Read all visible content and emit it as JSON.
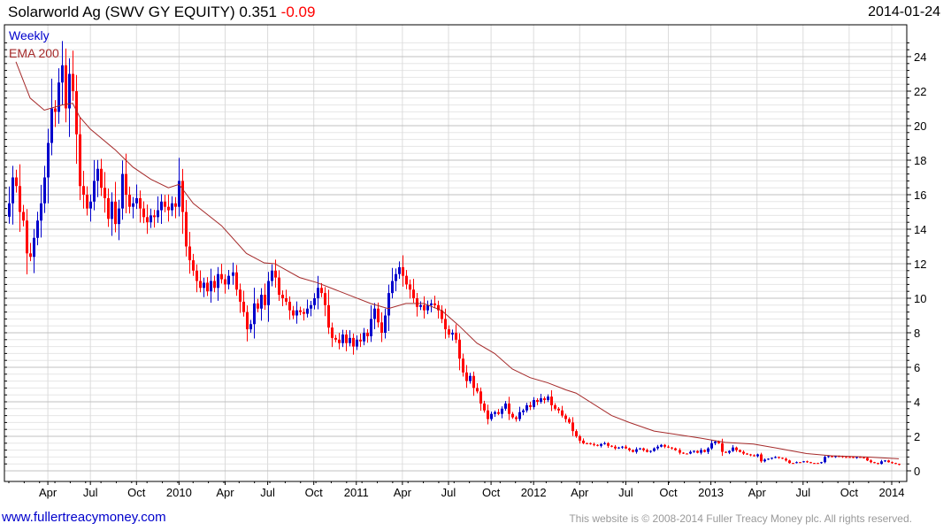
{
  "header": {
    "title": "Solarworld Ag (SWV GY EQUITY) 0.351",
    "change": "-0.09",
    "date": "2014-01-24"
  },
  "legend": {
    "weekly": "Weekly",
    "ema": "EMA 200"
  },
  "footer": {
    "site": "www.fullertreacymoney.com",
    "copyright": "This website is © 2008-2014 Fuller Treacy Money plc. All rights reserved."
  },
  "colors": {
    "up": "#0000cc",
    "down": "#ff0000",
    "ema": "#a52a2a",
    "grid_major": "#c0c0c0",
    "grid_minor": "#e6e6e6"
  },
  "chart_data": {
    "type": "candlestick",
    "title": "Solarworld Ag (SWV GY EQUITY)",
    "frequency": "Weekly",
    "ylim": [
      0,
      25
    ],
    "yticks": [
      0,
      2,
      4,
      6,
      8,
      10,
      12,
      14,
      16,
      18,
      20,
      22,
      24
    ],
    "xticks": [
      {
        "label": "Apr",
        "week": 11
      },
      {
        "label": "Jul",
        "week": 23
      },
      {
        "label": "Oct",
        "week": 36
      },
      {
        "label": "2010",
        "week": 48
      },
      {
        "label": "Apr",
        "week": 61
      },
      {
        "label": "Jul",
        "week": 73
      },
      {
        "label": "Oct",
        "week": 86
      },
      {
        "label": "2011",
        "week": 98
      },
      {
        "label": "Apr",
        "week": 111
      },
      {
        "label": "Jul",
        "week": 124
      },
      {
        "label": "Oct",
        "week": 136
      },
      {
        "label": "2012",
        "week": 148
      },
      {
        "label": "Apr",
        "week": 161
      },
      {
        "label": "Jul",
        "week": 174
      },
      {
        "label": "Oct",
        "week": 186
      },
      {
        "label": "2013",
        "week": 198
      },
      {
        "label": "Apr",
        "week": 211
      },
      {
        "label": "Jul",
        "week": 224
      },
      {
        "label": "Oct",
        "week": 237
      },
      {
        "label": "2014",
        "week": 249
      }
    ],
    "closes": [
      15.5,
      17,
      16.5,
      15,
      14.5,
      12.6,
      12.4,
      13.5,
      14.5,
      15.5,
      17,
      19,
      21,
      20.8,
      22.5,
      23.5,
      21,
      23,
      22,
      19.5,
      16.5,
      16,
      15.2,
      15.6,
      16.8,
      17.5,
      16.4,
      15.8,
      14.6,
      15.6,
      14.3,
      15.2,
      17.2,
      16,
      15.3,
      15.5,
      15.8,
      15.2,
      14.7,
      14.4,
      14.8,
      14.7,
      15.1,
      15.6,
      15.3,
      15.1,
      15.5,
      15.3,
      16.8,
      15.0,
      13.0,
      12.2,
      11.6,
      11.0,
      10.6,
      10.9,
      10.4,
      11.0,
      10.6,
      11.4,
      11.1,
      10.8,
      11.3,
      11.5,
      10.5,
      9.8,
      9.2,
      8.2,
      8.5,
      9.7,
      9.4,
      10.2,
      9.6,
      11.0,
      11.6,
      11.2,
      10.2,
      10.0,
      9.8,
      9.3,
      9.0,
      9.3,
      9.2,
      9.1,
      9.4,
      9.6,
      10.0,
      10.6,
      10.3,
      9.6,
      8.3,
      7.7,
      7.6,
      7.4,
      7.9,
      7.4,
      7.7,
      7.2,
      7.6,
      7.5,
      8.0,
      7.8,
      8.8,
      9.4,
      8.6,
      8.0,
      9.0,
      10.3,
      11.0,
      11.4,
      11.8,
      11.3,
      10.8,
      10.5,
      10.0,
      9.5,
      9.6,
      9.3,
      9.6,
      9.7,
      9.6,
      9.3,
      8.8,
      8.2,
      7.9,
      8.0,
      7.6,
      6.5,
      5.7,
      5.2,
      5.5,
      4.8,
      4.6,
      3.9,
      3.5,
      3.0,
      3.3,
      3.4,
      3.3,
      3.6,
      3.9,
      3.3,
      3.1,
      3.0,
      3.4,
      3.5,
      3.8,
      3.7,
      4.1,
      4.0,
      4.2,
      4.1,
      4.3,
      3.8,
      3.6,
      3.5,
      3.2,
      3.0,
      2.8,
      2.3,
      2.0,
      1.75,
      1.6,
      1.6,
      1.55,
      1.5,
      1.45,
      1.55,
      1.6,
      1.45,
      1.4,
      1.3,
      1.35,
      1.4,
      1.3,
      1.2,
      1.1,
      1.25,
      1.3,
      1.2,
      1.1,
      1.15,
      1.3,
      1.4,
      1.5,
      1.4,
      1.35,
      1.3,
      1.2,
      1.05,
      1.0,
      1.0,
      1.1,
      1.15,
      1.05,
      1.2,
      1.1,
      1.3,
      1.6,
      1.7,
      1.6,
      1.1,
      1.05,
      1.15,
      1.35,
      1.2,
      1.1,
      1.0,
      0.95,
      0.9,
      0.85,
      0.95,
      0.55,
      0.65,
      0.7,
      0.75,
      0.8,
      0.75,
      0.7,
      0.6,
      0.45,
      0.45,
      0.5,
      0.5,
      0.55,
      0.5,
      0.45,
      0.45,
      0.45,
      0.5,
      0.8,
      0.85,
      0.8,
      0.85,
      0.85,
      0.8,
      0.8,
      0.8,
      0.75,
      0.8,
      0.78,
      0.75,
      0.6,
      0.5,
      0.45,
      0.4,
      0.55,
      0.6,
      0.5,
      0.45,
      0.4,
      0.351
    ],
    "ema200": [
      [
        2,
        23.7
      ],
      [
        6,
        21.6
      ],
      [
        10,
        20.9
      ],
      [
        15,
        21.2
      ],
      [
        18,
        21.3
      ],
      [
        20,
        20.5
      ],
      [
        23,
        19.8
      ],
      [
        30,
        18.6
      ],
      [
        35,
        17.6
      ],
      [
        40,
        16.9
      ],
      [
        45,
        16.4
      ],
      [
        48,
        16.6
      ],
      [
        52,
        15.5
      ],
      [
        60,
        14.2
      ],
      [
        67,
        12.6
      ],
      [
        72,
        12.05
      ],
      [
        75,
        12.0
      ],
      [
        82,
        11.2
      ],
      [
        87,
        10.9
      ],
      [
        92,
        10.5
      ],
      [
        97,
        10.1
      ],
      [
        102,
        9.7
      ],
      [
        107,
        9.4
      ],
      [
        112,
        9.7
      ],
      [
        117,
        9.7
      ],
      [
        122,
        9.3
      ],
      [
        127,
        8.4
      ],
      [
        132,
        7.4
      ],
      [
        137,
        6.8
      ],
      [
        142,
        5.9
      ],
      [
        147,
        5.4
      ],
      [
        152,
        5.1
      ],
      [
        157,
        4.7
      ],
      [
        160,
        4.5
      ],
      [
        170,
        3.2
      ],
      [
        175,
        2.8
      ],
      [
        182,
        2.3
      ],
      [
        187,
        2.15
      ],
      [
        195,
        1.9
      ],
      [
        202,
        1.65
      ],
      [
        210,
        1.55
      ],
      [
        217,
        1.3
      ],
      [
        225,
        1.0
      ],
      [
        232,
        0.87
      ],
      [
        242,
        0.8
      ],
      [
        251,
        0.7
      ]
    ]
  }
}
